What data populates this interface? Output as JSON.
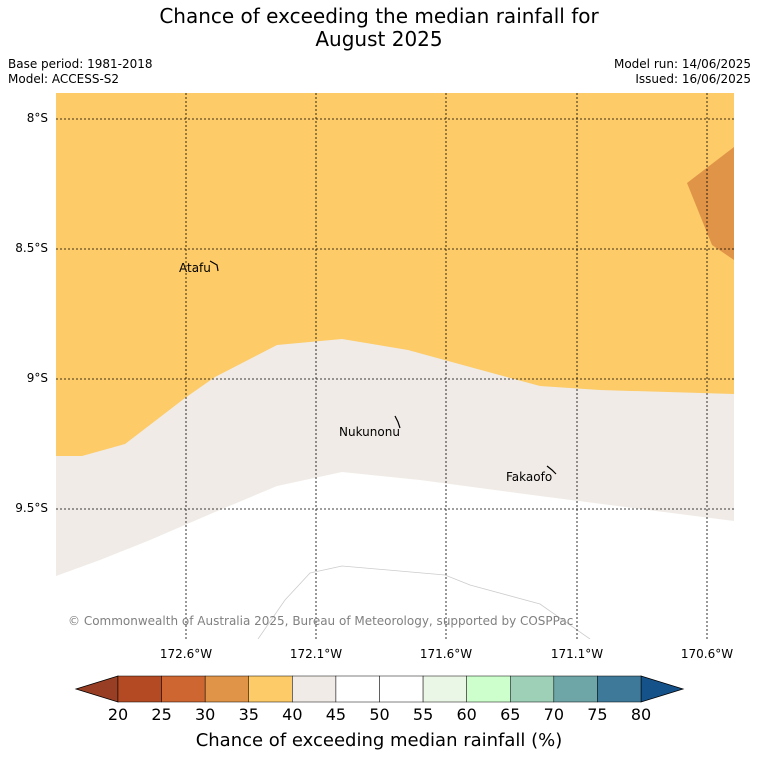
{
  "title_line1": "Chance of exceeding the median rainfall for",
  "title_line2": "August 2025",
  "base_period": "Base period: 1981-2018",
  "model": "Model: ACCESS-S2",
  "model_run": "Model run: 14/06/2025",
  "issued": "Issued: 16/06/2025",
  "lat_labels": [
    "8°S",
    "8.5°S",
    "9°S",
    "9.5°S"
  ],
  "lon_labels": [
    "172.6°W",
    "172.1°W",
    "171.6°W",
    "171.1°W",
    "170.6°W"
  ],
  "islands": [
    "Atafu",
    "Nukunonu",
    "Fakaofo"
  ],
  "copyright": "© Commonwealth of Australia 2025, Bureau of Meteorology, supported by COSPPac",
  "colorbar": {
    "ticks": [
      "20",
      "25",
      "30",
      "35",
      "40",
      "45",
      "50",
      "55",
      "60",
      "65",
      "70",
      "75",
      "80"
    ],
    "colors": [
      "#b34a23",
      "#cd6631",
      "#e09448",
      "#fdcb67",
      "#f0ebe6",
      "#ffffff",
      "#ffffff",
      "#eaf6e6",
      "#ccffcc",
      "#9ed0b8",
      "#6ea6a8",
      "#3f7999"
    ],
    "under_color": "#973e25",
    "over_color": "#16528a",
    "label": "Chance of exceeding median rainfall (%)"
  }
}
